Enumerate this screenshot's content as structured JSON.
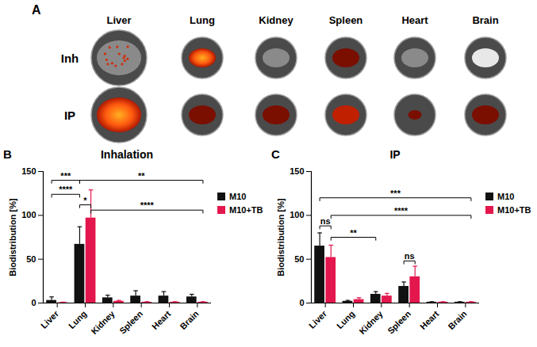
{
  "panel_A": {
    "panel": "A",
    "columns": [
      "Liver",
      "Lung",
      "Kidney",
      "Spleen",
      "Heart",
      "Brain"
    ],
    "rows": [
      "Inh",
      "IP"
    ]
  },
  "chart_data": [
    {
      "type": "bar",
      "panel": "B",
      "title": "Inhalation",
      "y_label": "Biodistribution [%]",
      "categories": [
        "Liver",
        "Lung",
        "Kidney",
        "Spleen",
        "Heart",
        "Brain"
      ],
      "series": [
        {
          "name": "M10",
          "color": "#111111",
          "values": [
            3,
            67,
            6,
            8,
            8,
            7
          ],
          "errors": [
            4,
            20,
            3,
            6,
            5,
            3
          ]
        },
        {
          "name": "M10+TB",
          "color": "#e3174d",
          "values": [
            0.5,
            97,
            2,
            1,
            1,
            1
          ],
          "errors": [
            0.5,
            32,
            1,
            0.5,
            0.5,
            0.5
          ]
        }
      ],
      "ylim": [
        0,
        150
      ],
      "yticks": [
        0,
        50,
        100,
        150
      ],
      "legend": "right",
      "annotations": [
        {
          "text": "***",
          "from": [
            "Liver",
            "M10"
          ],
          "to": [
            "Lung",
            "M10"
          ],
          "y": 140
        },
        {
          "text": "**",
          "from": [
            "Lung",
            "M10"
          ],
          "to": [
            "Brain",
            "M10+TB"
          ],
          "y": 140
        },
        {
          "text": "****",
          "from": [
            "Liver",
            "M10"
          ],
          "to": [
            "Lung",
            "M10"
          ],
          "y": 124
        },
        {
          "text": "*",
          "from": [
            "Lung",
            "M10"
          ],
          "to": [
            "Lung",
            "M10+TB"
          ],
          "y": 112
        },
        {
          "text": "****",
          "from": [
            "Lung",
            "M10+TB"
          ],
          "to": [
            "Brain",
            "M10+TB"
          ],
          "y": 106
        }
      ]
    },
    {
      "type": "bar",
      "panel": "C",
      "title": "IP",
      "y_label": "Biodistribution [%]",
      "categories": [
        "Liver",
        "Lung",
        "Kidney",
        "Spleen",
        "Heart",
        "Brain"
      ],
      "series": [
        {
          "name": "M10",
          "color": "#111111",
          "values": [
            65,
            2,
            10,
            19,
            1,
            1
          ],
          "errors": [
            15,
            1,
            3,
            5,
            0.5,
            0.5
          ]
        },
        {
          "name": "M10+TB",
          "color": "#e3174d",
          "values": [
            52,
            4,
            8,
            30,
            1,
            1
          ],
          "errors": [
            14,
            2,
            3,
            12,
            0.5,
            0.5
          ]
        }
      ],
      "ylim": [
        0,
        150
      ],
      "yticks": [
        0,
        50,
        100,
        150
      ],
      "legend": "right",
      "annotations": [
        {
          "text": "***",
          "from": [
            "Liver",
            "M10"
          ],
          "to": [
            "Brain",
            "M10+TB"
          ],
          "y": 120
        },
        {
          "text": "****",
          "from": [
            "Liver",
            "M10+TB"
          ],
          "to": [
            "Brain",
            "M10+TB"
          ],
          "y": 100
        },
        {
          "text": "ns",
          "from": [
            "Liver",
            "M10"
          ],
          "to": [
            "Liver",
            "M10+TB"
          ],
          "y": 88
        },
        {
          "text": "**",
          "from": [
            "Liver",
            "M10+TB"
          ],
          "to": [
            "Kidney",
            "M10"
          ],
          "y": 75
        },
        {
          "text": "ns",
          "from": [
            "Spleen",
            "M10"
          ],
          "to": [
            "Spleen",
            "M10+TB"
          ],
          "y": 48
        }
      ]
    }
  ]
}
